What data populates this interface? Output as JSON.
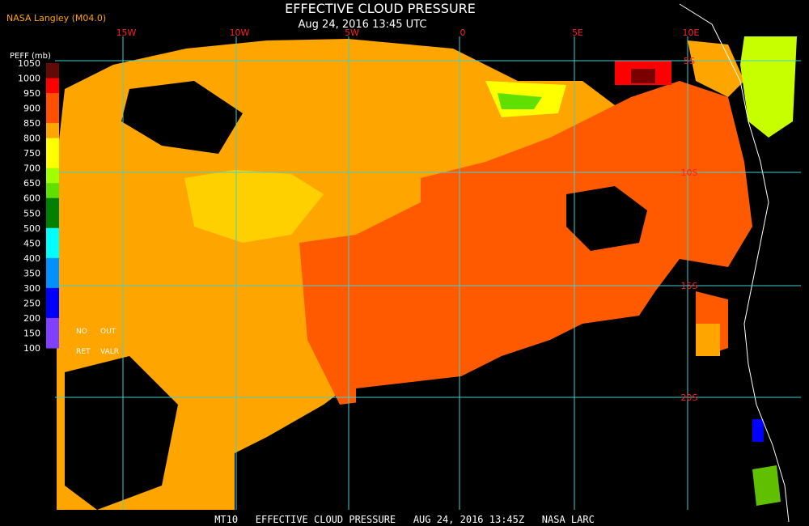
{
  "header": {
    "source": "NASA Langley (M04.0)",
    "title": "EFFECTIVE CLOUD PRESSURE",
    "datetime": "Aug 24, 2016 13:45 UTC"
  },
  "map": {
    "longitude_labels": [
      "15W",
      "10W",
      "5W",
      "0",
      "5E",
      "10E"
    ],
    "latitude_labels": [
      "5S",
      "10S",
      "15S",
      "20S"
    ]
  },
  "legend": {
    "title": "PEFF (mb)",
    "labels": [
      1050,
      1000,
      950,
      900,
      850,
      800,
      750,
      700,
      650,
      600,
      550,
      500,
      450,
      400,
      350,
      300,
      250,
      200,
      150,
      100
    ],
    "colors": [
      "#600a0a",
      "#ff0000",
      "#ff5000",
      "#ff5000",
      "#ffa500",
      "#ffff00",
      "#ffff00",
      "#a0ff00",
      "#60e000",
      "#008000",
      "#008000",
      "#00ffff",
      "#00ffff",
      "#0090ff",
      "#0090ff",
      "#0000ff",
      "#0000ff",
      "#8040ff",
      "#8040ff"
    ],
    "notes": [
      "NO",
      "OUT",
      "RET",
      "VALR"
    ]
  },
  "footer": {
    "text": "MT10   EFFECTIVE CLOUD PRESSURE   AUG 24, 2016 13:45Z   NASA LARC"
  }
}
